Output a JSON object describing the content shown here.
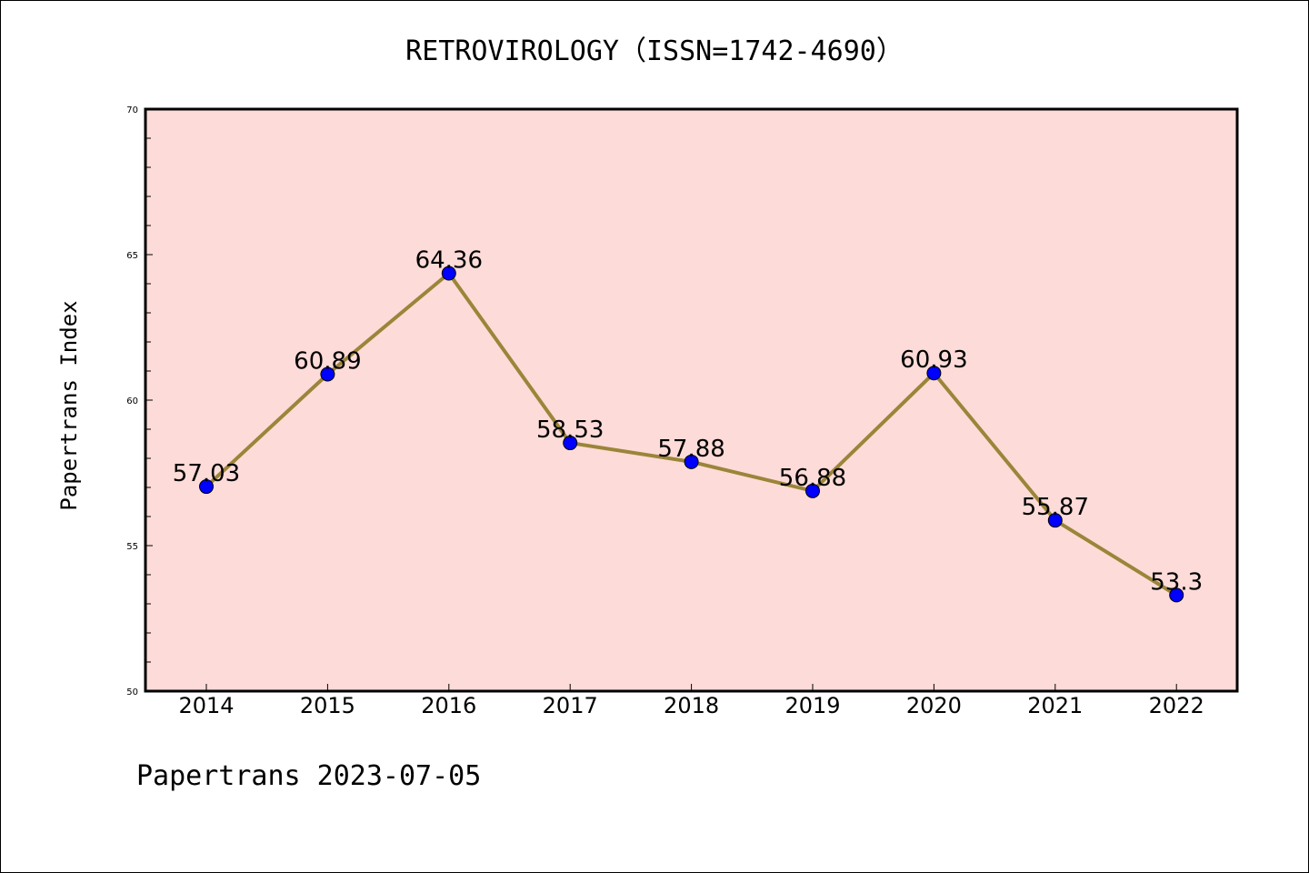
{
  "chart_data": {
    "type": "line",
    "title": "RETROVIROLOGY（ISSN=1742-4690）",
    "xlabel": "",
    "ylabel": "Papertrans Index",
    "categories": [
      "2014",
      "2015",
      "2016",
      "2017",
      "2018",
      "2019",
      "2020",
      "2021",
      "2022"
    ],
    "series": [
      {
        "values": [
          57.03,
          60.89,
          64.36,
          58.53,
          57.88,
          56.88,
          60.93,
          55.87,
          53.3
        ],
        "labels": [
          "57.03",
          "60.89",
          "64.36",
          "58.53",
          "57.88",
          "56.88",
          "60.93",
          "55.87",
          "53.3"
        ]
      }
    ],
    "ylim": [
      50,
      70
    ],
    "yticks": [
      "50",
      "55",
      "60",
      "65",
      "70"
    ],
    "y_minor_step": 1,
    "grid": false,
    "colors": {
      "plot_background": "#fddbd8",
      "line": "#9a8539",
      "marker": "#0000ff"
    }
  },
  "footer": "Papertrans 2023-07-05"
}
